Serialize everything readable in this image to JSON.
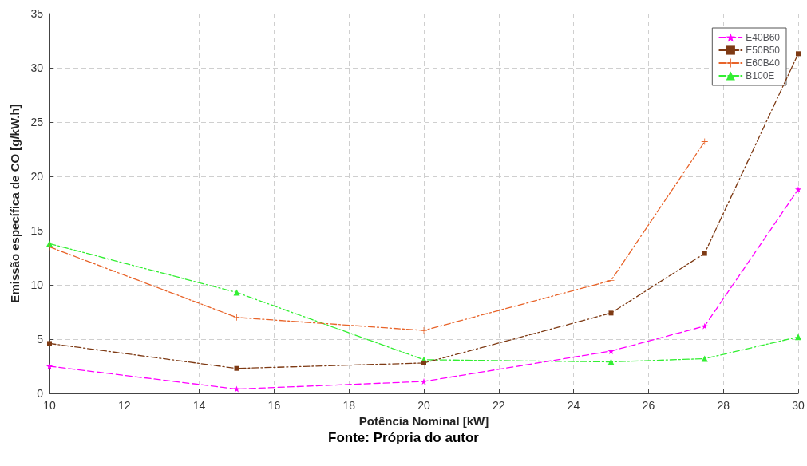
{
  "chart_data": {
    "type": "line",
    "xlabel": "Potência Nominal [kW]",
    "ylabel": "Emissão específica de CO [g/kW.h]",
    "annotations": [
      "Fonte: Própria do autor"
    ],
    "x": [
      10,
      15,
      20,
      25,
      27.5,
      30
    ],
    "xlim": [
      10,
      30
    ],
    "xticks": [
      10,
      12,
      14,
      16,
      18,
      20,
      22,
      24,
      26,
      28,
      30
    ],
    "ylim": [
      0,
      35
    ],
    "yticks": [
      0,
      5,
      10,
      15,
      20,
      25,
      30,
      35
    ],
    "grid": true,
    "legend": "top right",
    "series": [
      {
        "name": "E40B60",
        "color": "#ff00ff",
        "marker": "star",
        "line_style": "dashed",
        "values": [
          2.5,
          0.4,
          1.1,
          3.9,
          6.2,
          18.8
        ]
      },
      {
        "name": "E50B50",
        "color": "#7e3a14",
        "marker": "square",
        "line_style": "dashdot",
        "values": [
          4.6,
          2.3,
          2.8,
          7.4,
          12.9,
          31.3
        ]
      },
      {
        "name": "E60B40",
        "color": "#e8642a",
        "marker": "cross",
        "line_style": "dashdot",
        "values": [
          13.5,
          7.0,
          5.8,
          10.4,
          23.2,
          null
        ]
      },
      {
        "name": "B100E",
        "color": "#33ee33",
        "marker": "triangle",
        "line_style": "dashdot",
        "values": [
          13.8,
          9.3,
          3.1,
          2.9,
          3.2,
          5.2
        ]
      }
    ]
  }
}
